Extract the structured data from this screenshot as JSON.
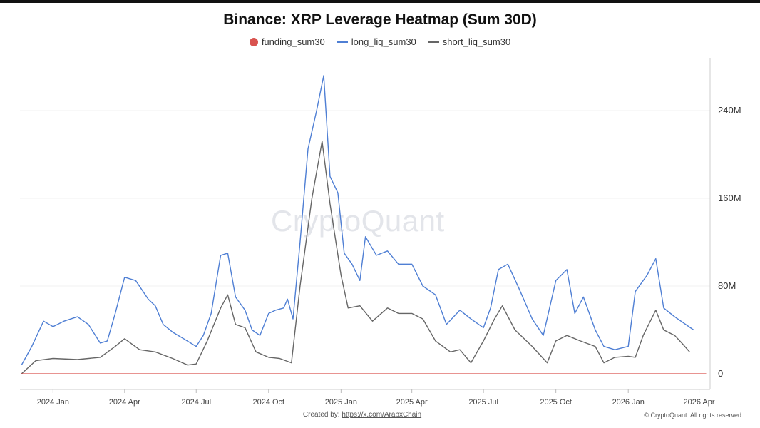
{
  "chart_data": {
    "type": "line",
    "title": "Binance: XRP Leverage Heatmap (Sum 30D)",
    "legend_position": "top-center",
    "grid": true,
    "y_axis_side": "right",
    "ylim": [
      0,
      280000000
    ],
    "y_ticks": [
      {
        "value": 0,
        "label": "0"
      },
      {
        "value": 80000000,
        "label": "80M"
      },
      {
        "value": 160000000,
        "label": "160M"
      },
      {
        "value": 240000000,
        "label": "240M"
      }
    ],
    "xlim": [
      "2023-11-20",
      "2026-04-15"
    ],
    "x_ticks": [
      {
        "value": "2024-01-01",
        "label": "2024 Jan"
      },
      {
        "value": "2024-04-01",
        "label": "2024 Apr"
      },
      {
        "value": "2024-07-01",
        "label": "2024 Jul"
      },
      {
        "value": "2024-10-01",
        "label": "2024 Oct"
      },
      {
        "value": "2025-01-01",
        "label": "2025 Jan"
      },
      {
        "value": "2025-04-01",
        "label": "2025 Apr"
      },
      {
        "value": "2025-07-01",
        "label": "2025 Jul"
      },
      {
        "value": "2025-10-01",
        "label": "2025 Oct"
      },
      {
        "value": "2026-01-01",
        "label": "2026 Jan"
      },
      {
        "value": "2026-04-01",
        "label": "2026 Apr"
      }
    ],
    "series": [
      {
        "name": "funding_sum30",
        "color": "#d9534f",
        "marker": "dot",
        "points": [
          [
            "2023-11-22",
            0
          ],
          [
            "2026-04-10",
            0
          ]
        ]
      },
      {
        "name": "long_liq_sum30",
        "color": "#4f7fd4",
        "marker": "line",
        "points": [
          [
            "2023-11-22",
            8000000
          ],
          [
            "2023-12-05",
            25000000
          ],
          [
            "2023-12-20",
            48000000
          ],
          [
            "2024-01-01",
            43000000
          ],
          [
            "2024-01-15",
            48000000
          ],
          [
            "2024-02-01",
            52000000
          ],
          [
            "2024-02-15",
            45000000
          ],
          [
            "2024-03-01",
            28000000
          ],
          [
            "2024-03-10",
            30000000
          ],
          [
            "2024-03-20",
            55000000
          ],
          [
            "2024-04-01",
            88000000
          ],
          [
            "2024-04-15",
            85000000
          ],
          [
            "2024-05-01",
            68000000
          ],
          [
            "2024-05-10",
            62000000
          ],
          [
            "2024-05-20",
            45000000
          ],
          [
            "2024-06-01",
            38000000
          ],
          [
            "2024-06-15",
            32000000
          ],
          [
            "2024-07-01",
            25000000
          ],
          [
            "2024-07-10",
            35000000
          ],
          [
            "2024-07-20",
            55000000
          ],
          [
            "2024-08-01",
            108000000
          ],
          [
            "2024-08-10",
            110000000
          ],
          [
            "2024-08-20",
            70000000
          ],
          [
            "2024-09-01",
            58000000
          ],
          [
            "2024-09-10",
            40000000
          ],
          [
            "2024-09-20",
            35000000
          ],
          [
            "2024-10-01",
            55000000
          ],
          [
            "2024-10-10",
            58000000
          ],
          [
            "2024-10-20",
            60000000
          ],
          [
            "2024-10-25",
            68000000
          ],
          [
            "2024-11-01",
            50000000
          ],
          [
            "2024-11-10",
            120000000
          ],
          [
            "2024-11-20",
            205000000
          ],
          [
            "2024-12-01",
            240000000
          ],
          [
            "2024-12-10",
            272000000
          ],
          [
            "2024-12-18",
            180000000
          ],
          [
            "2024-12-28",
            165000000
          ],
          [
            "2025-01-05",
            110000000
          ],
          [
            "2025-01-15",
            100000000
          ],
          [
            "2025-01-25",
            85000000
          ],
          [
            "2025-02-01",
            125000000
          ],
          [
            "2025-02-15",
            108000000
          ],
          [
            "2025-03-01",
            112000000
          ],
          [
            "2025-03-15",
            100000000
          ],
          [
            "2025-04-01",
            100000000
          ],
          [
            "2025-04-15",
            80000000
          ],
          [
            "2025-05-01",
            72000000
          ],
          [
            "2025-05-15",
            45000000
          ],
          [
            "2025-06-01",
            58000000
          ],
          [
            "2025-06-15",
            50000000
          ],
          [
            "2025-07-01",
            42000000
          ],
          [
            "2025-07-10",
            60000000
          ],
          [
            "2025-07-20",
            95000000
          ],
          [
            "2025-08-01",
            100000000
          ],
          [
            "2025-08-15",
            78000000
          ],
          [
            "2025-09-01",
            50000000
          ],
          [
            "2025-09-15",
            35000000
          ],
          [
            "2025-10-01",
            85000000
          ],
          [
            "2025-10-15",
            95000000
          ],
          [
            "2025-10-25",
            55000000
          ],
          [
            "2025-11-05",
            70000000
          ],
          [
            "2025-11-20",
            40000000
          ],
          [
            "2025-12-01",
            25000000
          ],
          [
            "2025-12-15",
            22000000
          ],
          [
            "2026-01-01",
            25000000
          ],
          [
            "2026-01-10",
            75000000
          ],
          [
            "2026-01-25",
            90000000
          ],
          [
            "2026-02-05",
            105000000
          ],
          [
            "2026-02-15",
            60000000
          ],
          [
            "2026-03-01",
            52000000
          ],
          [
            "2026-03-15",
            45000000
          ],
          [
            "2026-03-25",
            40000000
          ]
        ]
      },
      {
        "name": "short_liq_sum30",
        "color": "#666666",
        "marker": "line",
        "points": [
          [
            "2023-11-22",
            0
          ],
          [
            "2023-12-10",
            12000000
          ],
          [
            "2024-01-01",
            14000000
          ],
          [
            "2024-02-01",
            13000000
          ],
          [
            "2024-03-01",
            15000000
          ],
          [
            "2024-03-20",
            25000000
          ],
          [
            "2024-04-01",
            32000000
          ],
          [
            "2024-04-20",
            22000000
          ],
          [
            "2024-05-10",
            20000000
          ],
          [
            "2024-06-01",
            14000000
          ],
          [
            "2024-06-20",
            8000000
          ],
          [
            "2024-07-01",
            9000000
          ],
          [
            "2024-07-15",
            30000000
          ],
          [
            "2024-08-01",
            60000000
          ],
          [
            "2024-08-10",
            72000000
          ],
          [
            "2024-08-20",
            45000000
          ],
          [
            "2024-09-01",
            42000000
          ],
          [
            "2024-09-15",
            20000000
          ],
          [
            "2024-10-01",
            15000000
          ],
          [
            "2024-10-15",
            14000000
          ],
          [
            "2024-10-30",
            10000000
          ],
          [
            "2024-11-10",
            80000000
          ],
          [
            "2024-11-25",
            160000000
          ],
          [
            "2024-12-08",
            212000000
          ],
          [
            "2024-12-18",
            155000000
          ],
          [
            "2025-01-01",
            90000000
          ],
          [
            "2025-01-10",
            60000000
          ],
          [
            "2025-01-25",
            62000000
          ],
          [
            "2025-02-10",
            48000000
          ],
          [
            "2025-03-01",
            60000000
          ],
          [
            "2025-03-15",
            55000000
          ],
          [
            "2025-04-01",
            55000000
          ],
          [
            "2025-04-15",
            50000000
          ],
          [
            "2025-05-01",
            30000000
          ],
          [
            "2025-05-20",
            20000000
          ],
          [
            "2025-06-01",
            22000000
          ],
          [
            "2025-06-15",
            10000000
          ],
          [
            "2025-07-01",
            30000000
          ],
          [
            "2025-07-15",
            50000000
          ],
          [
            "2025-07-25",
            62000000
          ],
          [
            "2025-08-10",
            40000000
          ],
          [
            "2025-09-01",
            25000000
          ],
          [
            "2025-09-20",
            10000000
          ],
          [
            "2025-10-01",
            30000000
          ],
          [
            "2025-10-15",
            35000000
          ],
          [
            "2025-11-01",
            30000000
          ],
          [
            "2025-11-20",
            25000000
          ],
          [
            "2025-12-01",
            10000000
          ],
          [
            "2025-12-15",
            15000000
          ],
          [
            "2026-01-01",
            16000000
          ],
          [
            "2026-01-10",
            15000000
          ],
          [
            "2026-01-20",
            35000000
          ],
          [
            "2026-02-05",
            58000000
          ],
          [
            "2026-02-15",
            40000000
          ],
          [
            "2026-03-01",
            35000000
          ],
          [
            "2026-03-10",
            28000000
          ],
          [
            "2026-03-20",
            20000000
          ]
        ]
      }
    ]
  },
  "watermark": "CryptoQuant",
  "footer": {
    "created_by_label": "Created by:",
    "created_by_link": "https://x.com/ArabxChain",
    "copyright": "© CryptoQuant. All rights reserved"
  }
}
